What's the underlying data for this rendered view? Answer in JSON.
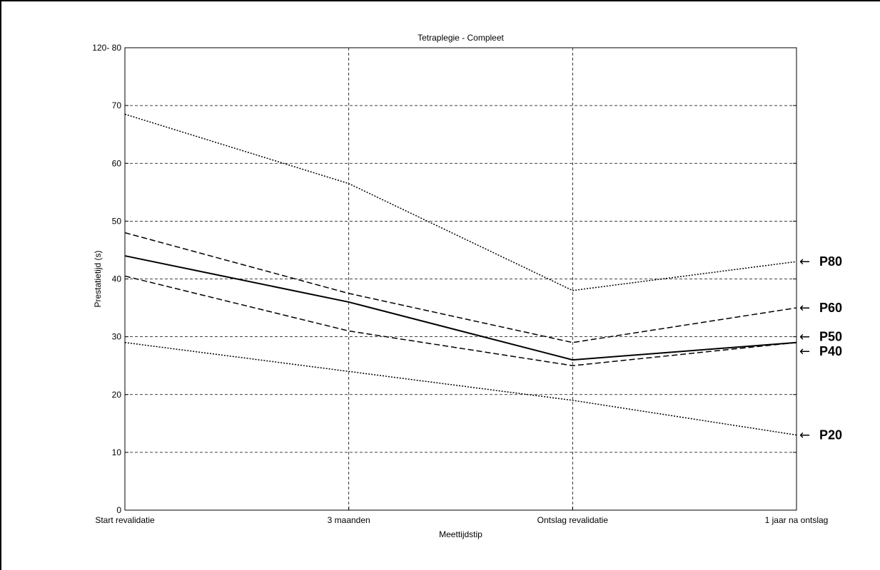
{
  "chart_data": {
    "type": "line",
    "title": "Tetraplegie - Compleet",
    "xlabel": "Meettijdstip",
    "ylabel": "Prestatietijd (s)",
    "categories": [
      "Start revalidatie",
      "3 maanden",
      "Ontslag revalidatie",
      "1 jaar na ontslag"
    ],
    "ylim": [
      0,
      80
    ],
    "yticks": [
      0,
      10,
      20,
      30,
      40,
      50,
      60,
      70,
      80
    ],
    "ytick_labels": [
      "0",
      "10",
      "20",
      "30",
      "40",
      "50",
      "60",
      "70",
      "120- 80"
    ],
    "grid": true,
    "series": [
      {
        "name": "P80",
        "style": "dotted",
        "values": [
          68.5,
          56.5,
          38,
          43
        ]
      },
      {
        "name": "P60",
        "style": "dashed",
        "values": [
          48,
          37.5,
          29,
          35
        ]
      },
      {
        "name": "P50",
        "style": "solid",
        "values": [
          44,
          36,
          26,
          29
        ]
      },
      {
        "name": "P40",
        "style": "dashed",
        "values": [
          40.5,
          31,
          25,
          29
        ]
      },
      {
        "name": "P20",
        "style": "dotted",
        "values": [
          29,
          24,
          19,
          13
        ]
      }
    ],
    "right_labels": [
      {
        "text": "P80",
        "value": 43
      },
      {
        "text": "P60",
        "value": 35
      },
      {
        "text": "P50",
        "value": 30
      },
      {
        "text": "P40",
        "value": 27.5
      },
      {
        "text": "P20",
        "value": 13
      }
    ],
    "arrow_glyph": "←"
  }
}
